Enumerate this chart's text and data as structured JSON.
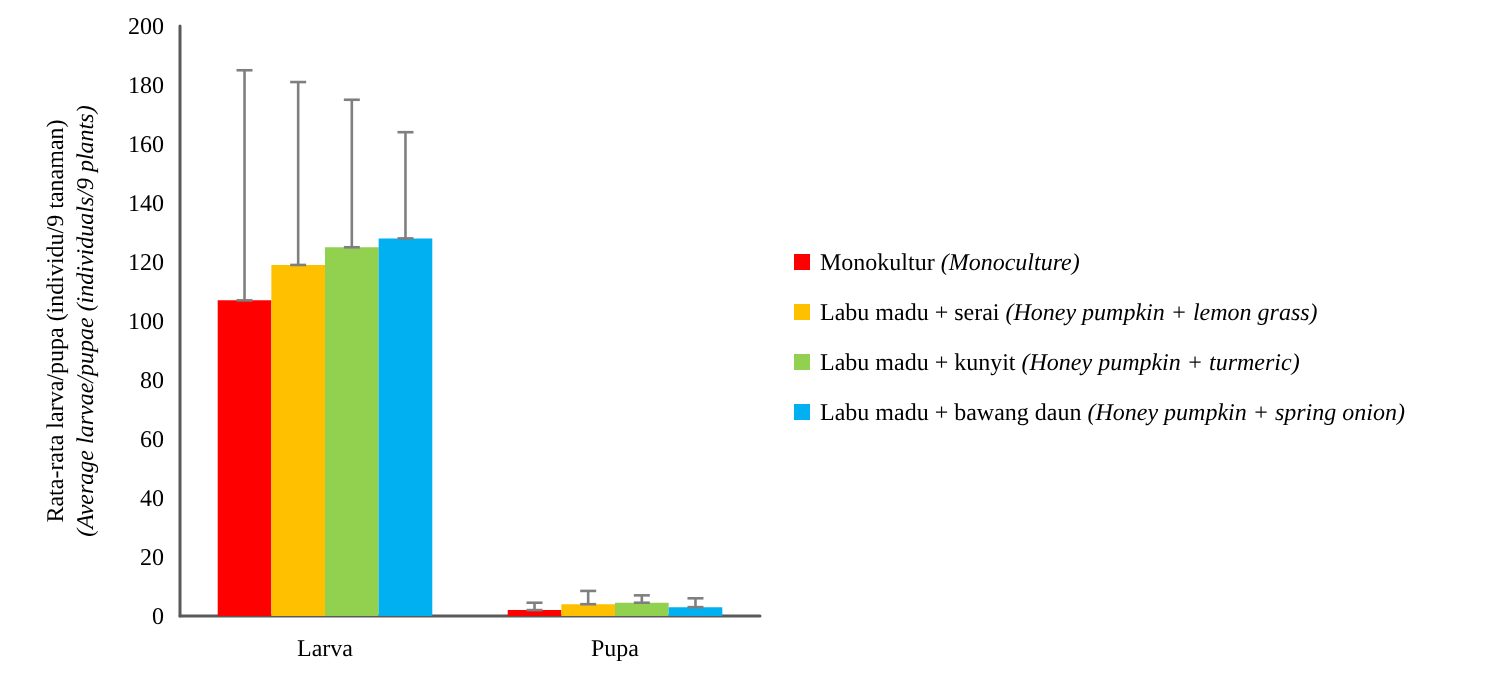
{
  "chart_data": {
    "type": "bar",
    "ylabel": "Rata-rata larva/pupa (individu/9 tanaman)\n(Average larvae/pupae (individuals/9 plants)",
    "categories": [
      "Larva",
      "Pupa"
    ],
    "series": [
      {
        "name": "Monokultur (Monoculture)",
        "color": "#ff0000",
        "values": [
          107,
          2
        ],
        "errors": [
          [
            107,
            185
          ],
          [
            2,
            4.5
          ]
        ]
      },
      {
        "name": "Labu madu + serai (Honey pumpkin + lemon grass)",
        "color": "#ffc000",
        "values": [
          119,
          4
        ],
        "errors": [
          [
            119,
            181
          ],
          [
            4,
            8.5
          ]
        ]
      },
      {
        "name": "Labu madu + kunyit (Honey pumpkin + turmeric)",
        "color": "#92d050",
        "values": [
          125,
          4.5
        ],
        "errors": [
          [
            125,
            175
          ],
          [
            4.5,
            7
          ]
        ]
      },
      {
        "name": "Labu madu + bawang daun (Honey pumpkin + spring onion)",
        "color": "#00b0f0",
        "values": [
          128,
          3
        ],
        "errors": [
          [
            128,
            164
          ],
          [
            3,
            6
          ]
        ]
      }
    ],
    "ylim": [
      0,
      200
    ],
    "yticks": [
      0,
      20,
      40,
      60,
      80,
      100,
      120,
      140,
      160,
      180,
      200
    ],
    "grid": false,
    "legend": "right"
  }
}
